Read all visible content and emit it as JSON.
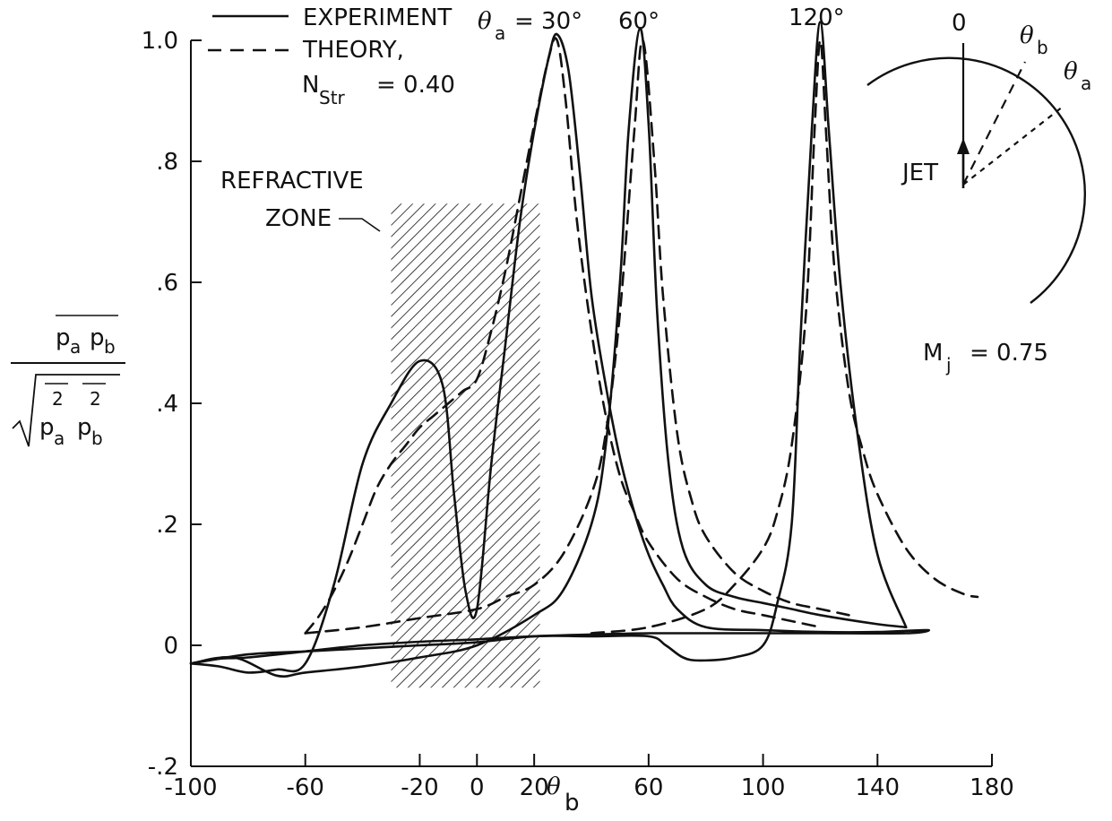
{
  "chart_data": {
    "type": "line",
    "xlabel": "θ",
    "xlabel_sub": "b",
    "ylabel": {
      "num_p_a": "p",
      "num_sub_a": "a",
      "num_p_b": "p",
      "num_sub_b": "b",
      "den_p_a": "p",
      "den_sub_a": "a",
      "den_exp_a": "2",
      "den_p_b": "p",
      "den_sub_b": "b",
      "den_exp_b": "2"
    },
    "xlim": [
      -100,
      180
    ],
    "ylim": [
      -0.2,
      1.0
    ],
    "x_ticks": [
      -100,
      -60,
      -20,
      0,
      20,
      60,
      100,
      140,
      180
    ],
    "x_tick_labels": [
      "-100",
      "-60",
      "-20",
      "0",
      "20",
      "60",
      "100",
      "140",
      "180"
    ],
    "y_ticks": [
      -0.2,
      0,
      0.2,
      0.4,
      0.6,
      0.8,
      1.0
    ],
    "y_tick_labels": [
      "-.2",
      "0",
      ".2",
      ".4",
      ".6",
      ".8",
      "1.0"
    ],
    "legend": {
      "experiment": "EXPERIMENT",
      "theory": "THEORY,",
      "nstr_main": "N",
      "nstr_sub": "Str",
      "nstr_value": "= 0.40"
    },
    "annotations": {
      "theta_a_symbol": "θ",
      "theta_a_sub": "a",
      "theta_a_30": "= 30°",
      "theta_a_60": "60°",
      "theta_a_120": "120°",
      "refractive_line1": "REFRACTIVE",
      "refractive_line2": "ZONE",
      "mach_main": "M",
      "mach_sub": "j",
      "mach_value": "= 0.75"
    },
    "inset": {
      "zero": "0",
      "theta_b": "θ",
      "theta_b_sub": "b",
      "theta_a": "θ",
      "theta_a_sub": "a",
      "jet": "JET"
    },
    "refractive_zone": {
      "x": [
        -30,
        22
      ],
      "y": [
        -0.07,
        0.73
      ]
    },
    "series": [
      {
        "name": "EXPERIMENT",
        "theta_a": 30,
        "style": "solid",
        "x": [
          -100,
          -90,
          -80,
          -70,
          -60,
          -50,
          -40,
          -30,
          -20,
          -12,
          -8,
          -4,
          0,
          5,
          10,
          15,
          20,
          25,
          28,
          32,
          36,
          40,
          45,
          50,
          55,
          60,
          65,
          70,
          80,
          100,
          120,
          140,
          150,
          158,
          150,
          120,
          100,
          80,
          60,
          40,
          20,
          0,
          -20,
          -40,
          -60,
          -80,
          -90,
          -100
        ],
        "y": [
          -0.03,
          -0.035,
          -0.045,
          -0.04,
          -0.03,
          0.1,
          0.3,
          0.4,
          0.47,
          0.43,
          0.25,
          0.09,
          0.06,
          0.3,
          0.5,
          0.7,
          0.85,
          0.97,
          1.01,
          0.95,
          0.78,
          0.58,
          0.43,
          0.31,
          0.22,
          0.15,
          0.1,
          0.06,
          0.03,
          0.025,
          0.022,
          0.022,
          0.024,
          0.025,
          0.02,
          0.02,
          0.02,
          0.02,
          0.02,
          0.018,
          0.015,
          0.01,
          0.006,
          0.0,
          -0.01,
          -0.02,
          -0.022,
          -0.03
        ]
      },
      {
        "name": "EXPERIMENT",
        "theta_a": 60,
        "style": "solid",
        "x": [
          -100,
          -85,
          -70,
          -60,
          -40,
          -20,
          0,
          20,
          30,
          40,
          45,
          50,
          53,
          57,
          60,
          63,
          67,
          72,
          80,
          90,
          100,
          110,
          120,
          140,
          150
        ],
        "y": [
          -0.03,
          -0.02,
          -0.05,
          -0.045,
          -0.035,
          -0.02,
          0.0,
          0.05,
          0.09,
          0.2,
          0.33,
          0.6,
          0.85,
          1.02,
          0.86,
          0.55,
          0.3,
          0.16,
          0.1,
          0.08,
          0.07,
          0.06,
          0.05,
          0.035,
          0.03
        ]
      },
      {
        "name": "EXPERIMENT",
        "theta_a": 120,
        "style": "solid",
        "x": [
          -100,
          -80,
          -60,
          -40,
          -20,
          0,
          20,
          40,
          60,
          66,
          72,
          78,
          90,
          100,
          105,
          110,
          113,
          117,
          120,
          123,
          127,
          133,
          140,
          150
        ],
        "y": [
          -0.03,
          -0.015,
          -0.01,
          -0.005,
          0.0,
          0.005,
          0.015,
          0.015,
          0.015,
          0.0,
          -0.02,
          -0.025,
          -0.02,
          0.0,
          0.07,
          0.2,
          0.5,
          0.85,
          1.03,
          0.85,
          0.6,
          0.35,
          0.15,
          0.03
        ]
      },
      {
        "name": "THEORY",
        "theta_a": 30,
        "style": "dashed",
        "x": [
          -60,
          -55,
          -50,
          -45,
          -40,
          -35,
          -30,
          -25,
          -20,
          -15,
          -10,
          -5,
          0,
          5,
          10,
          15,
          20,
          25,
          28,
          31,
          35,
          40,
          45,
          50,
          55,
          60,
          70,
          80,
          90,
          100,
          110,
          120
        ],
        "y": [
          0.02,
          0.05,
          0.09,
          0.14,
          0.2,
          0.26,
          0.3,
          0.33,
          0.36,
          0.38,
          0.4,
          0.42,
          0.44,
          0.52,
          0.62,
          0.74,
          0.86,
          0.97,
          1.0,
          0.9,
          0.7,
          0.52,
          0.38,
          0.28,
          0.22,
          0.17,
          0.11,
          0.08,
          0.06,
          0.05,
          0.04,
          0.03
        ]
      },
      {
        "name": "THEORY",
        "theta_a": 60,
        "style": "dashed",
        "x": [
          -60,
          -40,
          -20,
          0,
          10,
          20,
          30,
          40,
          45,
          50,
          55,
          58,
          62,
          65,
          70,
          75,
          80,
          90,
          100,
          110,
          120,
          130
        ],
        "y": [
          0.02,
          0.03,
          0.045,
          0.06,
          0.08,
          0.1,
          0.15,
          0.25,
          0.35,
          0.55,
          0.85,
          1.0,
          0.8,
          0.58,
          0.35,
          0.24,
          0.18,
          0.12,
          0.09,
          0.07,
          0.06,
          0.05
        ]
      },
      {
        "name": "THEORY",
        "theta_a": 120,
        "style": "dashed",
        "x": [
          40,
          60,
          80,
          90,
          100,
          105,
          110,
          115,
          118,
          120,
          122,
          125,
          130,
          135,
          140,
          150,
          160,
          170,
          175
        ],
        "y": [
          0.02,
          0.03,
          0.06,
          0.1,
          0.16,
          0.22,
          0.33,
          0.55,
          0.85,
          1.0,
          0.85,
          0.62,
          0.42,
          0.32,
          0.25,
          0.16,
          0.11,
          0.085,
          0.08
        ]
      }
    ]
  }
}
